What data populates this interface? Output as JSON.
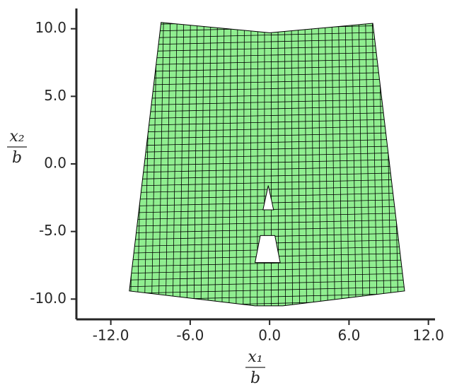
{
  "chart_data": {
    "type": "mesh",
    "x_label": {
      "numerator": "x₁",
      "denominator": "b"
    },
    "y_label": {
      "numerator": "x₂",
      "denominator": "b"
    },
    "xlim": [
      -14.6,
      12.5
    ],
    "ylim": [
      -11.5,
      11.5
    ],
    "xticks": [
      {
        "value": -12,
        "label": "-12.0"
      },
      {
        "value": -6,
        "label": "-6.0"
      },
      {
        "value": 0,
        "label": "0.0"
      },
      {
        "value": 6,
        "label": "6.0"
      },
      {
        "value": 12,
        "label": "12.0"
      }
    ],
    "yticks": [
      {
        "value": -10,
        "label": "-10.0"
      },
      {
        "value": -5,
        "label": "-5.0"
      },
      {
        "value": 0,
        "label": "0.0"
      },
      {
        "value": 5,
        "label": "5.0"
      },
      {
        "value": 10,
        "label": "10.0"
      }
    ],
    "color": "#90ee90",
    "outline": {
      "x": [
        -8.2,
        0,
        7.8,
        10.2,
        1,
        -1.1,
        -10.6
      ],
      "y": [
        10.47,
        9.7,
        10.4,
        -9.4,
        -10.5,
        -10.5,
        -9.4
      ]
    },
    "holes": [
      {
        "x": [
          -0.5,
          0.3,
          -0.1
        ],
        "y": [
          -3.4,
          -3.4,
          -1.6
        ]
      },
      {
        "x": [
          -1.1,
          0.8,
          0.4,
          -0.7
        ],
        "y": [
          -7.3,
          -7.3,
          -5.3,
          -5.3
        ]
      }
    ]
  }
}
